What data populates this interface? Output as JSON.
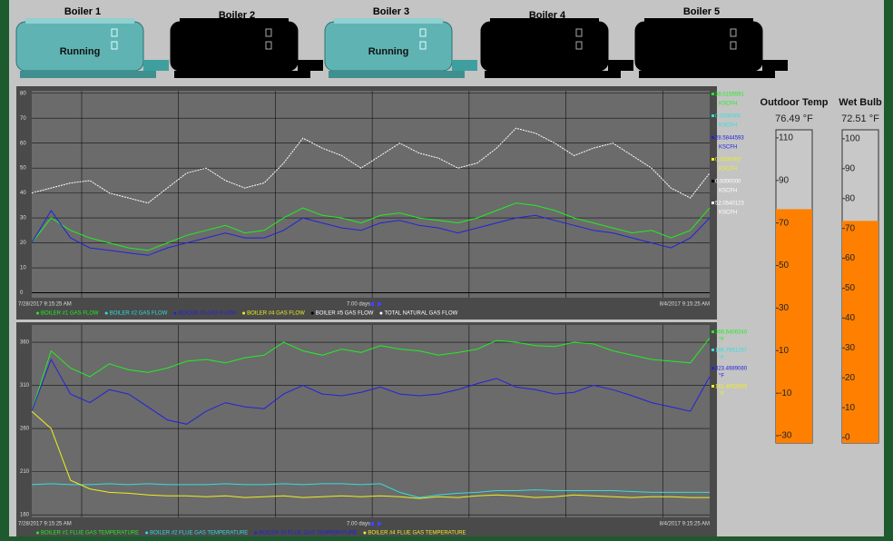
{
  "boilers": [
    {
      "label": "Boiler 1",
      "status": "Running"
    },
    {
      "label": "Boiler 2"
    },
    {
      "label": "Boiler 3",
      "status": "Running"
    },
    {
      "label": "Boiler 4"
    },
    {
      "label": "Boiler 5"
    }
  ],
  "chart_data": [
    {
      "type": "line",
      "ylim": [
        -2,
        81
      ],
      "yticks": [
        0,
        10,
        20,
        30,
        40,
        50,
        60,
        70,
        80
      ],
      "x_labels": [
        "7/28/2017 9:15:25 AM",
        "8/4/2017 9:15:25 AM"
      ],
      "span_label": "7.00 days",
      "unit": "KSCFH",
      "series": [
        {
          "name": "BOILER #1 GAS FLOW",
          "color": "#22ee22",
          "current": "38.0155591",
          "values": [
            20,
            30,
            25,
            22,
            20,
            18,
            17,
            20,
            23,
            25,
            27,
            24,
            25,
            30,
            34,
            31,
            30,
            28,
            31,
            32,
            30,
            29,
            28,
            30,
            33,
            36,
            35,
            33,
            30,
            28,
            26,
            24,
            25,
            22,
            25,
            34
          ]
        },
        {
          "name": "BOILER #2 GAS FLOW",
          "color": "#33dddd",
          "current": "0.0000000",
          "values": [
            0,
            0,
            0,
            0,
            0,
            0,
            0,
            0,
            0,
            0,
            0,
            0,
            0,
            0,
            0,
            0,
            0,
            0,
            0,
            0,
            0,
            0,
            0,
            0,
            0,
            0,
            0,
            0,
            0,
            0,
            0,
            0,
            0,
            0,
            0,
            0
          ]
        },
        {
          "name": "BOILER #3 GAS FLOW",
          "color": "#2222dd",
          "current": "28.5844593",
          "values": [
            20,
            33,
            22,
            18,
            17,
            16,
            15,
            18,
            20,
            22,
            24,
            22,
            22,
            25,
            30,
            28,
            26,
            25,
            28,
            29,
            27,
            26,
            24,
            26,
            28,
            30,
            31,
            29,
            27,
            25,
            24,
            22,
            20,
            18,
            22,
            30
          ]
        },
        {
          "name": "BOILER #4 GAS FLOW",
          "color": "#eeee22",
          "current": "0.0000000",
          "values": [
            0,
            0,
            0,
            0,
            0,
            0,
            0,
            0,
            0,
            0,
            0,
            0,
            0,
            0,
            0,
            0,
            0,
            0,
            0,
            0,
            0,
            0,
            0,
            0,
            0,
            0,
            0,
            0,
            0,
            0,
            0,
            0,
            0,
            0,
            0,
            0
          ]
        },
        {
          "name": "BOILER #5 GAS FLOW",
          "color": "#000000",
          "current": "0.0000000",
          "values": [
            0,
            0,
            0,
            0,
            0,
            0,
            0,
            0,
            0,
            0,
            0,
            0,
            0,
            0,
            0,
            0,
            0,
            0,
            0,
            0,
            0,
            0,
            0,
            0,
            0,
            0,
            0,
            0,
            0,
            0,
            0,
            0,
            0,
            0,
            0,
            0
          ]
        },
        {
          "name": "TOTAL NATURAL GAS FLOW",
          "color": "#ffffff",
          "current": "52.0540123",
          "values": [
            40,
            42,
            44,
            45,
            40,
            38,
            36,
            42,
            48,
            50,
            45,
            42,
            44,
            52,
            62,
            58,
            55,
            50,
            55,
            60,
            56,
            54,
            50,
            52,
            58,
            66,
            64,
            60,
            55,
            58,
            60,
            55,
            50,
            42,
            38,
            48
          ]
        }
      ]
    },
    {
      "type": "line",
      "ylim": [
        157,
        380
      ],
      "yticks": [
        160,
        210,
        260,
        310,
        360
      ],
      "x_labels": [
        "7/28/2017 9:15:25 AM",
        "8/4/2017 9:15:25 AM"
      ],
      "span_label": "7.00 days",
      "unit": "°F",
      "series": [
        {
          "name": "BOILER #1 FLUE GAS TEMPERATURE",
          "color": "#22ee22",
          "current": "366.6406240",
          "values": [
            280,
            350,
            330,
            320,
            335,
            328,
            325,
            330,
            338,
            340,
            336,
            342,
            345,
            360,
            350,
            345,
            352,
            348,
            356,
            352,
            350,
            345,
            348,
            352,
            362,
            360,
            356,
            355,
            360,
            358,
            350,
            345,
            340,
            338,
            336,
            365
          ]
        },
        {
          "name": "BOILER #2 FLUE GAS TEMPERATURE",
          "color": "#33dddd",
          "current": "196.7851257",
          "values": [
            195,
            196,
            195,
            195,
            196,
            195,
            196,
            195,
            195,
            195,
            196,
            195,
            195,
            196,
            195,
            196,
            196,
            195,
            196,
            186,
            180,
            183,
            185,
            186,
            188,
            188,
            189,
            188,
            188,
            188,
            188,
            187,
            186,
            186,
            186,
            186
          ]
        },
        {
          "name": "BOILER #3 FLUE GAS TEMPERATURE",
          "color": "#2222dd",
          "current": "323.4989080",
          "values": [
            280,
            340,
            300,
            290,
            305,
            300,
            285,
            270,
            265,
            280,
            290,
            285,
            283,
            300,
            310,
            300,
            298,
            302,
            308,
            300,
            298,
            300,
            305,
            312,
            318,
            308,
            305,
            300,
            302,
            310,
            305,
            298,
            290,
            285,
            280,
            320
          ]
        },
        {
          "name": "BOILER #4 FLUE GAS TEMPERATURE",
          "color": "#eeee22",
          "current": "181.4652863",
          "values": [
            280,
            260,
            200,
            190,
            186,
            185,
            183,
            182,
            182,
            181,
            182,
            180,
            181,
            182,
            180,
            181,
            182,
            181,
            182,
            181,
            179,
            181,
            180,
            182,
            183,
            182,
            180,
            181,
            183,
            182,
            181,
            180,
            181,
            181,
            180,
            180
          ]
        }
      ]
    }
  ],
  "gauges": [
    {
      "title": "Outdoor Temp",
      "value": 76.49,
      "value_label": "76.49 °F",
      "color": "#ff8000",
      "ylim": [
        -33.4,
        113.8
      ],
      "yticks": [
        110,
        90,
        70,
        50,
        30,
        10,
        -10,
        -30
      ]
    },
    {
      "title": "Wet Bulb",
      "value": 72.51,
      "value_label": "72.51 °F",
      "color": "#ff8000",
      "ylim": [
        -1.8,
        103
      ],
      "yticks": [
        100,
        90,
        80,
        70,
        60,
        50,
        40,
        30,
        20,
        10,
        0
      ]
    }
  ]
}
